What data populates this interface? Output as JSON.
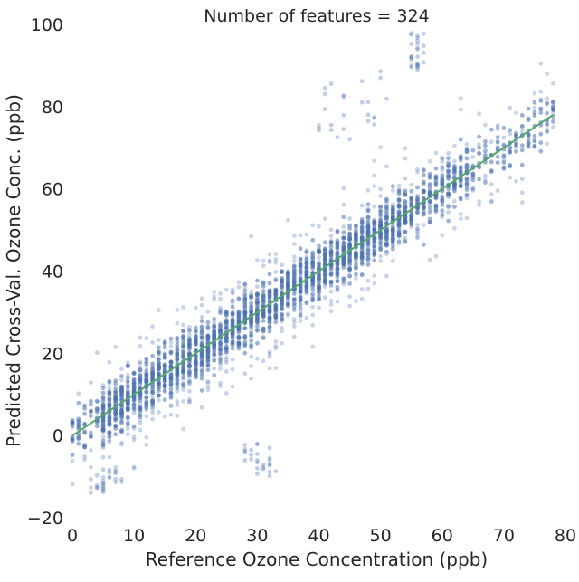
{
  "chart_data": {
    "type": "scatter",
    "title": "Number of features = 324",
    "xlabel": "Reference Ozone Concentration (ppb)",
    "ylabel": "Predicted Cross-Val. Ozone Conc. (ppb)",
    "xlim": [
      0,
      80
    ],
    "ylim": [
      -20,
      100
    ],
    "xticks": [
      "0",
      "10",
      "20",
      "30",
      "40",
      "50",
      "60",
      "70",
      "80"
    ],
    "yticks": [
      "−20",
      "0",
      "20",
      "40",
      "60",
      "80",
      "100"
    ],
    "grid": false,
    "legend": "none",
    "scatter": {
      "color": "#4c72b0",
      "x_spacing": 1,
      "x_range": [
        0,
        78
      ],
      "center_line": "y = x",
      "core_spread_ppb": 6,
      "outer_spread_ppb": 14,
      "outlier_groups": [
        {
          "x_range": [
            40,
            52
          ],
          "y_range": [
            72,
            90
          ]
        },
        {
          "x_range": [
            28,
            33
          ],
          "y_range": [
            -10,
            -2
          ]
        },
        {
          "x_range": [
            3,
            8
          ],
          "y_range": [
            -14,
            -8
          ]
        },
        {
          "x_range": [
            55,
            57
          ],
          "y_range": [
            88,
            98
          ]
        }
      ]
    },
    "fit_line": {
      "color": "#55a868",
      "points": [
        [
          0,
          0
        ],
        [
          78,
          78
        ]
      ]
    }
  }
}
